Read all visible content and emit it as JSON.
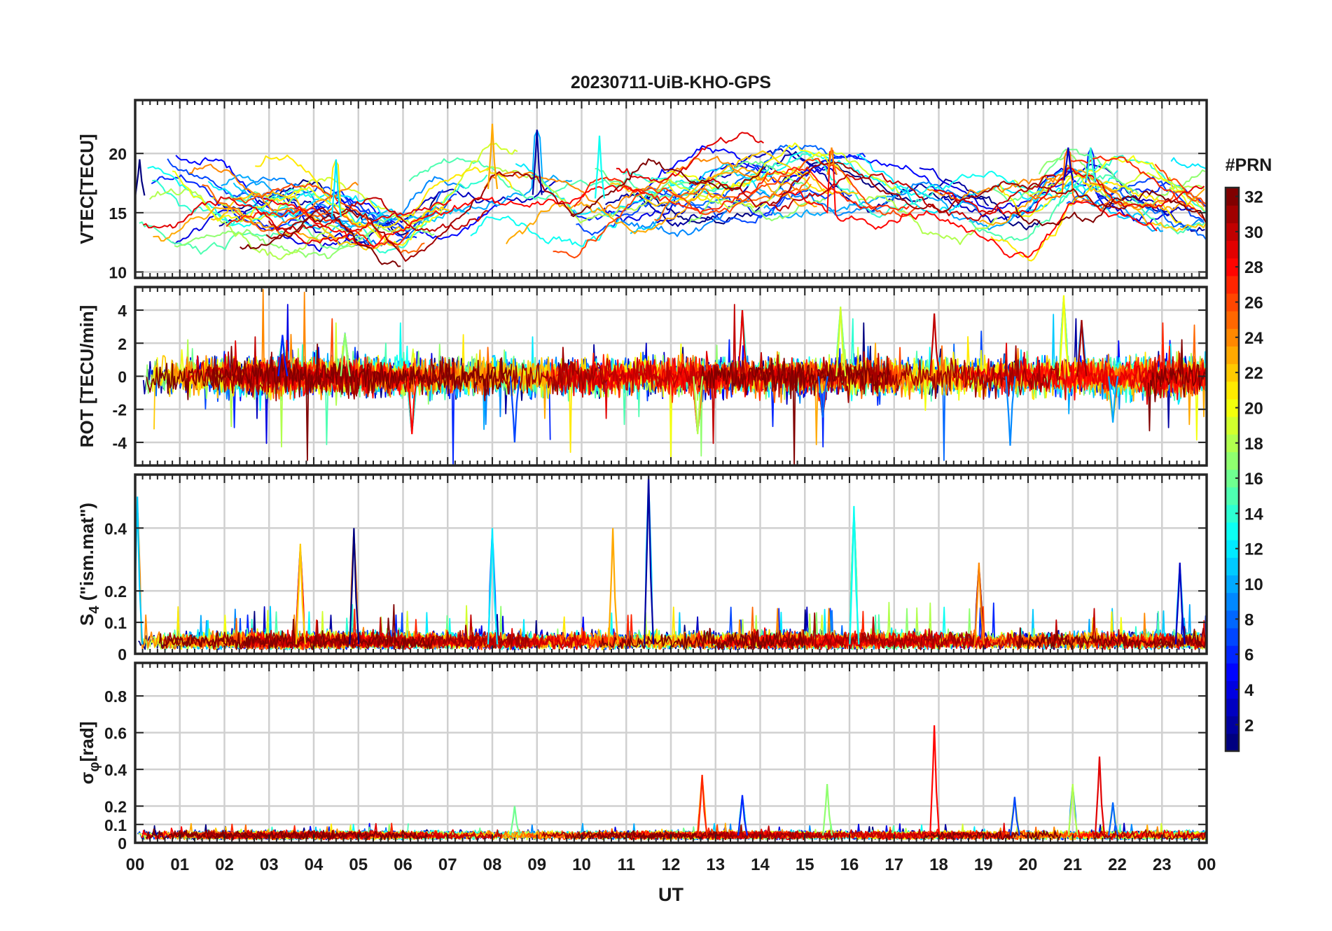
{
  "chart_data": {
    "type": "line",
    "title": "20230711-UiB-KHO-GPS",
    "xlabel": "UT",
    "x_tick_labels": [
      "00",
      "01",
      "02",
      "03",
      "04",
      "05",
      "06",
      "07",
      "08",
      "09",
      "10",
      "11",
      "12",
      "13",
      "14",
      "15",
      "16",
      "17",
      "18",
      "19",
      "20",
      "21",
      "22",
      "23",
      "00"
    ],
    "x_range_hours": [
      0,
      24
    ],
    "grid": true,
    "colorbar": {
      "label": "#PRN",
      "range": [
        1,
        32
      ],
      "ticks": [
        2,
        4,
        6,
        8,
        10,
        12,
        14,
        16,
        18,
        20,
        22,
        24,
        26,
        28,
        30,
        32
      ],
      "tick_labels": [
        "2",
        "4",
        "6",
        "8",
        "10",
        "12",
        "14",
        "16",
        "18",
        "20",
        "22",
        "24",
        "26",
        "28",
        "30",
        "32"
      ],
      "colormap": "jet"
    },
    "panels": [
      {
        "key": "vtec",
        "ylabel": "VTEC[TECU]",
        "ylim": [
          9.5,
          24.5
        ],
        "yticks": [
          10,
          15,
          20
        ],
        "ytick_labels": [
          "10",
          "15",
          "20"
        ],
        "baseline": 16.5,
        "variability": 2.8,
        "trend": [
          [
            0,
            16.5
          ],
          [
            2,
            15.5
          ],
          [
            4,
            15
          ],
          [
            6,
            13.5
          ],
          [
            8,
            17
          ],
          [
            10,
            16
          ],
          [
            12,
            17
          ],
          [
            15,
            18.5
          ],
          [
            18,
            17
          ],
          [
            20,
            15.2
          ],
          [
            21,
            18
          ],
          [
            23,
            16.5
          ],
          [
            24,
            16
          ]
        ],
        "events": [
          [
            0.1,
            19.5
          ],
          [
            4.5,
            19.5
          ],
          [
            8.0,
            22.5
          ],
          [
            9.0,
            22.0
          ],
          [
            10.4,
            21.5
          ],
          [
            15.6,
            20.5
          ],
          [
            20.9,
            20.5
          ],
          [
            21.4,
            20.5
          ]
        ]
      },
      {
        "key": "rot",
        "ylabel": "ROT [TECU/min]",
        "ylim": [
          -5.4,
          5.4
        ],
        "yticks": [
          -4,
          -2,
          0,
          2,
          4
        ],
        "ytick_labels": [
          "-4",
          "-2",
          "0",
          "2",
          "4"
        ],
        "baseline": 0,
        "variability": 0.5,
        "events": [
          [
            3.3,
            2.5
          ],
          [
            4.7,
            2.6
          ],
          [
            6.2,
            -3.5
          ],
          [
            8.5,
            -4.0
          ],
          [
            12.6,
            -3.5
          ],
          [
            13.6,
            4.0
          ],
          [
            15.4,
            -2.5
          ],
          [
            15.8,
            4.2
          ],
          [
            17.9,
            3.8
          ],
          [
            19.6,
            -4.2
          ],
          [
            20.8,
            4.9
          ],
          [
            21.2,
            3.4
          ],
          [
            21.9,
            -2.8
          ]
        ]
      },
      {
        "key": "s4",
        "ylabel": "S4 (\"ism.mat\")",
        "ylabel_main": "S",
        "ylabel_sub": "4",
        "ylabel_rest": " (\"ism.mat\")",
        "ylim": [
          0,
          0.57
        ],
        "yticks": [
          0,
          0.1,
          0.2,
          0.4
        ],
        "ytick_labels": [
          "0",
          "0.1",
          "0.2",
          "0.4"
        ],
        "baseline": 0.03,
        "variability": 0.03,
        "events": [
          [
            0.05,
            0.5
          ],
          [
            3.7,
            0.35
          ],
          [
            4.9,
            0.4
          ],
          [
            8.0,
            0.4
          ],
          [
            10.7,
            0.4
          ],
          [
            11.5,
            0.57
          ],
          [
            16.1,
            0.47
          ],
          [
            18.9,
            0.29
          ],
          [
            23.4,
            0.29
          ]
        ]
      },
      {
        "key": "sigma",
        "ylabel": "σφ[rad]",
        "ylabel_main": "σ",
        "ylabel_sub": "φ",
        "ylabel_rest": "[rad]",
        "ylim": [
          0,
          0.98
        ],
        "yticks": [
          0,
          0.1,
          0.2,
          0.4,
          0.6,
          0.8
        ],
        "ytick_labels": [
          "0",
          "0.1",
          "0.2",
          "0.4",
          "0.6",
          "0.8"
        ],
        "baseline": 0.04,
        "variability": 0.015,
        "events": [
          [
            8.5,
            0.2
          ],
          [
            12.7,
            0.37
          ],
          [
            13.6,
            0.26
          ],
          [
            15.5,
            0.32
          ],
          [
            17.9,
            0.64
          ],
          [
            19.7,
            0.25
          ],
          [
            21.0,
            0.32
          ],
          [
            21.6,
            0.47
          ],
          [
            21.9,
            0.22
          ]
        ]
      }
    ]
  }
}
